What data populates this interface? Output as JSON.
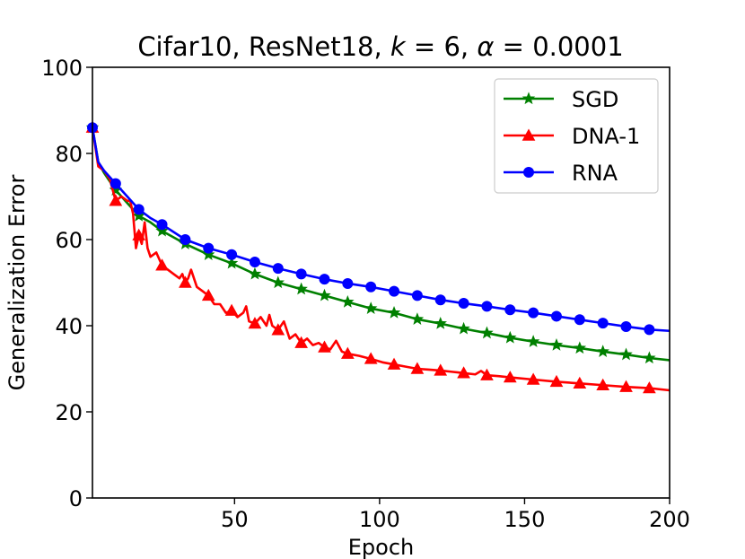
{
  "chart_data": {
    "type": "line",
    "title_parts": [
      {
        "text": "Cifar10, ResNet18, ",
        "italic": false
      },
      {
        "text": "k",
        "italic": true
      },
      {
        "text": " = 6, ",
        "italic": false
      },
      {
        "text": "α",
        "italic": true
      },
      {
        "text": " = 0.0001",
        "italic": false
      }
    ],
    "xlabel": "Epoch",
    "ylabel": "Generalization Error",
    "xlim": [
      1,
      200
    ],
    "ylim": [
      0,
      100
    ],
    "xticks": [
      50,
      100,
      150,
      200
    ],
    "yticks": [
      0,
      20,
      40,
      60,
      80,
      100
    ],
    "grid": false,
    "legend_position": "top-right",
    "series": [
      {
        "name": "SGD",
        "color": "#008000",
        "marker": "star",
        "marker_every": 8,
        "marker_start": 1,
        "x": [
          1,
          3,
          5,
          9,
          13,
          17,
          21,
          25,
          33,
          41,
          49,
          57,
          65,
          73,
          81,
          89,
          97,
          105,
          113,
          121,
          129,
          137,
          145,
          153,
          161,
          169,
          177,
          185,
          193,
          200
        ],
        "y": [
          86,
          78,
          75.5,
          71.5,
          68.5,
          65.5,
          64,
          62,
          59,
          56.5,
          54.5,
          52,
          50,
          48.5,
          47,
          45.5,
          44,
          43,
          41.5,
          40.5,
          39.3,
          38.3,
          37.2,
          36.3,
          35.5,
          34.8,
          34,
          33.3,
          32.5,
          32
        ]
      },
      {
        "name": "DNA-1",
        "color": "#ff0000",
        "marker": "triangle",
        "marker_every": 8,
        "marker_start": 1,
        "x": [
          1,
          3,
          5,
          6,
          7,
          9,
          11,
          13,
          14,
          15,
          16,
          17,
          18,
          19,
          20,
          21,
          23,
          25,
          27,
          29,
          31,
          32,
          33,
          34,
          35,
          37,
          39,
          41,
          43,
          45,
          47,
          49,
          51,
          53,
          54,
          55,
          57,
          59,
          61,
          62,
          63,
          65,
          67,
          69,
          71,
          73,
          75,
          77,
          79,
          81,
          83,
          85,
          87,
          89,
          93,
          97,
          101,
          105,
          109,
          113,
          117,
          121,
          125,
          129,
          133,
          135,
          137,
          141,
          145,
          153,
          161,
          169,
          177,
          185,
          193,
          200
        ],
        "y": [
          86,
          77,
          76,
          75,
          74,
          69,
          70,
          69,
          69,
          66,
          58,
          61,
          59,
          64,
          58,
          56,
          57,
          54,
          53,
          52,
          51,
          52,
          50,
          51,
          53,
          49,
          48,
          47,
          45,
          45,
          43,
          43.5,
          42,
          43,
          44.5,
          41,
          40.5,
          42,
          40,
          42.5,
          40,
          39,
          41,
          37,
          38,
          36,
          37,
          35.5,
          36,
          35,
          34.5,
          36.5,
          34,
          33.5,
          33,
          32.3,
          31.5,
          31,
          30.5,
          30,
          29.8,
          29.6,
          29.3,
          29,
          28.7,
          29.5,
          28.5,
          28.3,
          28,
          27.5,
          27,
          26.6,
          26.2,
          25.8,
          25.5,
          25
        ]
      },
      {
        "name": "RNA",
        "color": "#0000ff",
        "marker": "circle",
        "marker_every": 8,
        "marker_start": 1,
        "x": [
          1,
          3,
          5,
          9,
          13,
          17,
          21,
          25,
          33,
          41,
          49,
          57,
          65,
          73,
          81,
          89,
          97,
          105,
          113,
          121,
          129,
          137,
          145,
          153,
          161,
          169,
          177,
          185,
          193,
          200
        ],
        "y": [
          86,
          78,
          76,
          73,
          70,
          67,
          65,
          63.5,
          60,
          58,
          56.5,
          54.8,
          53.3,
          52,
          50.8,
          49.8,
          49,
          48,
          47,
          46,
          45.2,
          44.5,
          43.7,
          43,
          42.2,
          41.4,
          40.6,
          39.8,
          39.1,
          38.8
        ]
      }
    ]
  }
}
